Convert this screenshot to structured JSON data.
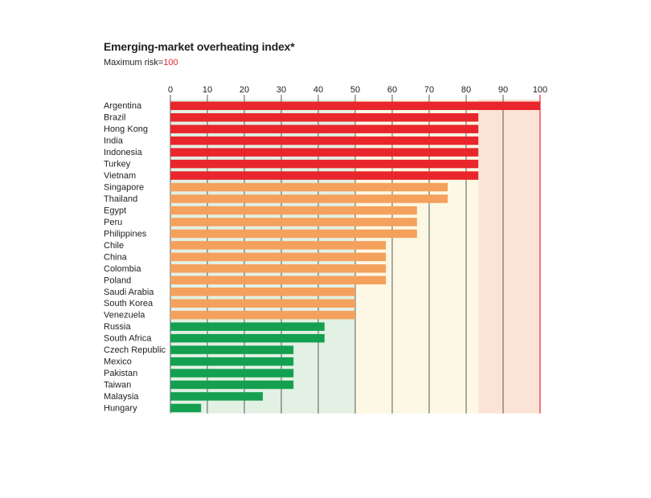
{
  "chart_data": {
    "type": "bar",
    "orientation": "horizontal",
    "title": "Emerging-market overheating index*",
    "subtitle_prefix": "Maximum risk=",
    "subtitle_value": "100",
    "xlim": [
      0,
      100
    ],
    "x_ticks": [
      0,
      10,
      20,
      30,
      40,
      50,
      60,
      70,
      80,
      90,
      100
    ],
    "grid": true,
    "colors": {
      "high": "#e8262c",
      "medium": "#f4a15d",
      "low": "#14a050",
      "zone_low": "#e2f1e4",
      "zone_medium": "#fdf8e4",
      "zone_high": "#fbe3d7",
      "grid": "#333333",
      "axis_highlight": "#e8262c"
    },
    "zones": [
      {
        "from": 0,
        "to": 50,
        "color_key": "zone_low"
      },
      {
        "from": 50,
        "to": 83.3,
        "color_key": "zone_medium"
      },
      {
        "from": 83.3,
        "to": 100,
        "color_key": "zone_high"
      }
    ],
    "categories": [
      "Argentina",
      "Brazil",
      "Hong Kong",
      "India",
      "Indonesia",
      "Turkey",
      "Vietnam",
      "Singapore",
      "Thailand",
      "Egypt",
      "Peru",
      "Philippines",
      "Chile",
      "China",
      "Colombia",
      "Poland",
      "Saudi Arabia",
      "South Korea",
      "Venezuela",
      "Russia",
      "South Africa",
      "Czech Republic",
      "Mexico",
      "Pakistan",
      "Taiwan",
      "Malaysia",
      "Hungary"
    ],
    "values": [
      100,
      83.3,
      83.3,
      83.3,
      83.3,
      83.3,
      83.3,
      75,
      75,
      66.7,
      66.7,
      66.7,
      58.3,
      58.3,
      58.3,
      58.3,
      50,
      50,
      50,
      41.7,
      41.7,
      33.3,
      33.3,
      33.3,
      33.3,
      25,
      8.3
    ],
    "risk_level": [
      "high",
      "high",
      "high",
      "high",
      "high",
      "high",
      "high",
      "medium",
      "medium",
      "medium",
      "medium",
      "medium",
      "medium",
      "medium",
      "medium",
      "medium",
      "medium",
      "medium",
      "medium",
      "low",
      "low",
      "low",
      "low",
      "low",
      "low",
      "low",
      "low"
    ]
  }
}
